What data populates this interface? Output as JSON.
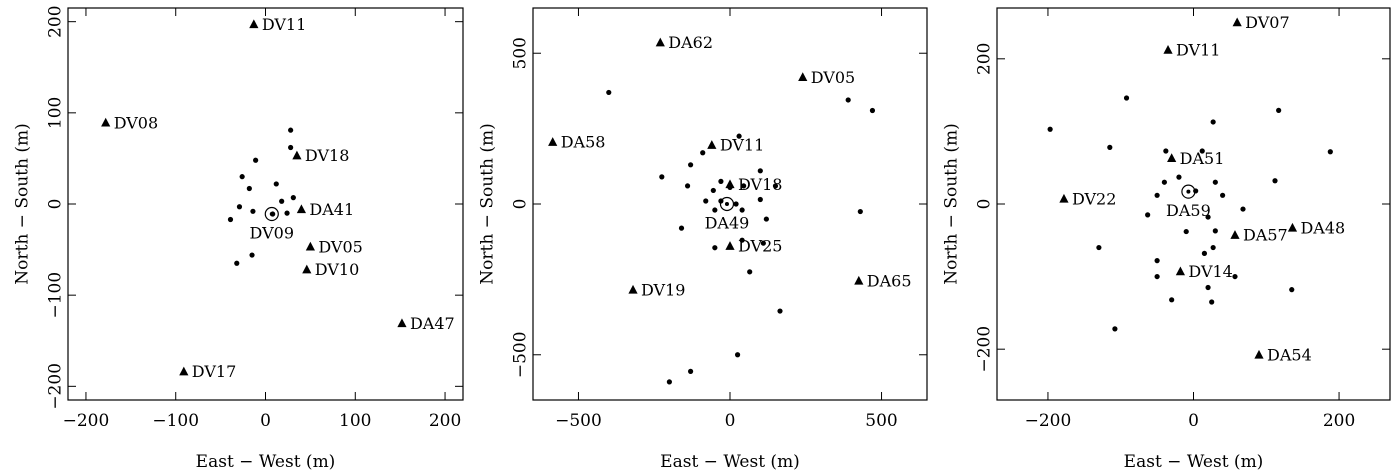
{
  "chart_data": [
    {
      "type": "scatter",
      "xlabel": "East − West (m)",
      "ylabel": "North − South (m)",
      "xlim": [
        -220,
        220
      ],
      "ylim": [
        -215,
        215
      ],
      "xticks": [
        -200,
        -100,
        0,
        100,
        200
      ],
      "xticklabels": [
        "−200",
        "−100",
        "0",
        "100",
        "200"
      ],
      "yticks": [
        -200,
        -100,
        0,
        100,
        200
      ],
      "yticklabels": [
        "−200",
        "−100",
        "0",
        "100",
        "200"
      ],
      "center_marker": [
        7,
        -11
      ],
      "labeled_antennas": [
        {
          "label": "DV11",
          "x": -13,
          "y": 197
        },
        {
          "label": "DV08",
          "x": -178,
          "y": 89
        },
        {
          "label": "DV18",
          "x": 35,
          "y": 53
        },
        {
          "label": "DA41",
          "x": 40,
          "y": -6
        },
        {
          "label": "DV09",
          "x": 7,
          "y": -11
        },
        {
          "label": "DV05",
          "x": 50,
          "y": -47
        },
        {
          "label": "DV10",
          "x": 46,
          "y": -72
        },
        {
          "label": "DA47",
          "x": 152,
          "y": -131
        },
        {
          "label": "DV17",
          "x": -91,
          "y": -184
        }
      ],
      "label_side": [
        "right",
        "right",
        "right",
        "right",
        "below",
        "right",
        "right",
        "right",
        "right"
      ],
      "points": [
        [
          28,
          81
        ],
        [
          -11,
          48
        ],
        [
          28,
          62
        ],
        [
          -26,
          30
        ],
        [
          12,
          22
        ],
        [
          -18,
          17
        ],
        [
          31,
          7
        ],
        [
          18,
          3
        ],
        [
          -29,
          -3
        ],
        [
          -39,
          -17
        ],
        [
          -14,
          -8
        ],
        [
          24,
          -10
        ],
        [
          -15,
          -56
        ],
        [
          -32,
          -65
        ],
        [
          8,
          -11
        ]
      ]
    },
    {
      "type": "scatter",
      "xlabel": "East − West (m)",
      "ylabel": "North − South (m)",
      "xlim": [
        -650,
        650
      ],
      "ylim": [
        -650,
        650
      ],
      "xticks": [
        -500,
        0,
        500
      ],
      "xticklabels": [
        "−500",
        "0",
        "500"
      ],
      "yticks": [
        -500,
        0,
        500
      ],
      "yticklabels": [
        "−500",
        "0",
        "500"
      ],
      "center_marker": [
        -10,
        0
      ],
      "labeled_antennas": [
        {
          "label": "DA62",
          "x": -230,
          "y": 535
        },
        {
          "label": "DV05",
          "x": 240,
          "y": 420
        },
        {
          "label": "DA58",
          "x": -585,
          "y": 205
        },
        {
          "label": "DV11",
          "x": -60,
          "y": 195
        },
        {
          "label": "DV18",
          "x": 0,
          "y": 65
        },
        {
          "label": "DA49",
          "x": -10,
          "y": 0
        },
        {
          "label": "DV25",
          "x": 0,
          "y": -140
        },
        {
          "label": "DV19",
          "x": -320,
          "y": -285
        },
        {
          "label": "DA65",
          "x": 425,
          "y": -255
        }
      ],
      "label_side": [
        "right",
        "right",
        "right",
        "right",
        "right",
        "below",
        "right",
        "right",
        "right"
      ],
      "points": [
        [
          -400,
          370
        ],
        [
          390,
          345
        ],
        [
          470,
          310
        ],
        [
          30,
          225
        ],
        [
          -90,
          170
        ],
        [
          -130,
          130
        ],
        [
          -225,
          90
        ],
        [
          -140,
          60
        ],
        [
          -55,
          45
        ],
        [
          -30,
          75
        ],
        [
          0,
          55
        ],
        [
          45,
          60
        ],
        [
          100,
          110
        ],
        [
          150,
          60
        ],
        [
          -80,
          10
        ],
        [
          -30,
          10
        ],
        [
          20,
          0
        ],
        [
          100,
          15
        ],
        [
          -50,
          -20
        ],
        [
          40,
          -20
        ],
        [
          120,
          -50
        ],
        [
          -160,
          -80
        ],
        [
          -50,
          -145
        ],
        [
          40,
          -120
        ],
        [
          110,
          -130
        ],
        [
          430,
          -25
        ],
        [
          65,
          -225
        ],
        [
          165,
          -355
        ],
        [
          25,
          -500
        ],
        [
          -130,
          -555
        ],
        [
          -200,
          -590
        ]
      ]
    },
    {
      "type": "scatter",
      "xlabel": "East − West (m)",
      "ylabel": "North − South (m)",
      "xlim": [
        -270,
        270
      ],
      "ylim": [
        -270,
        270
      ],
      "xticks": [
        -200,
        0,
        200
      ],
      "xticklabels": [
        "−200",
        "0",
        "200"
      ],
      "yticks": [
        -200,
        0,
        200
      ],
      "yticklabels": [
        "−200",
        "0",
        "200"
      ],
      "center_marker": [
        -7,
        17
      ],
      "labeled_antennas": [
        {
          "label": "DV07",
          "x": 60,
          "y": 250
        },
        {
          "label": "DV11",
          "x": -35,
          "y": 212
        },
        {
          "label": "DA51",
          "x": -30,
          "y": 63
        },
        {
          "label": "DV22",
          "x": -178,
          "y": 7
        },
        {
          "label": "DA59",
          "x": -7,
          "y": 17
        },
        {
          "label": "DA57",
          "x": 57,
          "y": -43
        },
        {
          "label": "DA48",
          "x": 136,
          "y": -33
        },
        {
          "label": "DV14",
          "x": -18,
          "y": -93
        },
        {
          "label": "DA54",
          "x": 90,
          "y": -208
        }
      ],
      "label_side": [
        "right",
        "right",
        "right",
        "right",
        "below",
        "right",
        "right",
        "right",
        "right"
      ],
      "points": [
        [
          -92,
          146
        ],
        [
          117,
          129
        ],
        [
          -197,
          103
        ],
        [
          27,
          113
        ],
        [
          -115,
          78
        ],
        [
          188,
          72
        ],
        [
          -38,
          73
        ],
        [
          12,
          73
        ],
        [
          -20,
          37
        ],
        [
          -40,
          30
        ],
        [
          30,
          30
        ],
        [
          112,
          32
        ],
        [
          3,
          18
        ],
        [
          -50,
          12
        ],
        [
          40,
          12
        ],
        [
          -63,
          -15
        ],
        [
          68,
          -7
        ],
        [
          20,
          -18
        ],
        [
          30,
          -37
        ],
        [
          -10,
          -38
        ],
        [
          -50,
          -78
        ],
        [
          27,
          -60
        ],
        [
          15,
          -68
        ],
        [
          -50,
          -100
        ],
        [
          57,
          -100
        ],
        [
          135,
          -118
        ],
        [
          -30,
          -132
        ],
        [
          25,
          -135
        ],
        [
          -108,
          -172
        ],
        [
          -130,
          -60
        ],
        [
          20,
          -115
        ]
      ]
    }
  ]
}
